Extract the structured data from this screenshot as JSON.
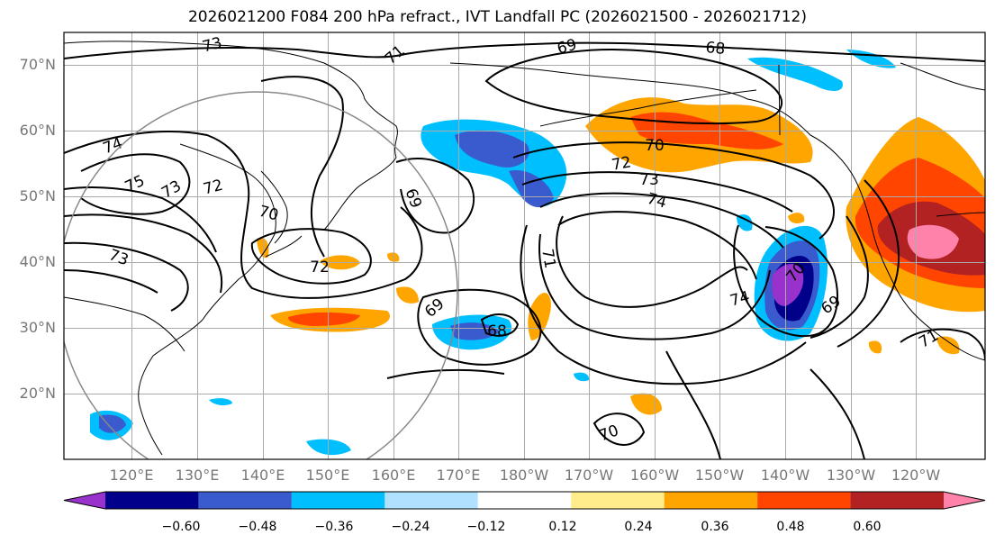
{
  "title": "2026021200 F084 200 hPa refract., IVT Landfall PC (2026021500 - 2026021712)",
  "lat_ticks": [
    "70°N",
    "60°N",
    "50°N",
    "40°N",
    "30°N",
    "20°N"
  ],
  "lon_ticks": [
    "120°E",
    "130°E",
    "140°E",
    "150°E",
    "160°E",
    "170°E",
    "180°W",
    "170°W",
    "160°W",
    "150°W",
    "140°W",
    "130°W",
    "120°W"
  ],
  "contour_labels": [
    "73",
    "71",
    "69",
    "68",
    "74",
    "75",
    "73",
    "72",
    "70",
    "73",
    "72",
    "69",
    "69",
    "70",
    "72",
    "73",
    "74",
    "71",
    "74",
    "70",
    "69",
    "68",
    "71",
    "70"
  ],
  "colorbar": {
    "labels": [
      "−0.60",
      "−0.48",
      "−0.36",
      "−0.24",
      "−0.12",
      "0.12",
      "0.24",
      "0.36",
      "0.48",
      "0.60"
    ],
    "colors": [
      "#9932cc",
      "#00008b",
      "#3a5bcd",
      "#00bfff",
      "#b0e2ff",
      "#ffffff",
      "#ffec8b",
      "#ffa500",
      "#ff4500",
      "#b22222",
      "#ff82ab"
    ]
  }
}
